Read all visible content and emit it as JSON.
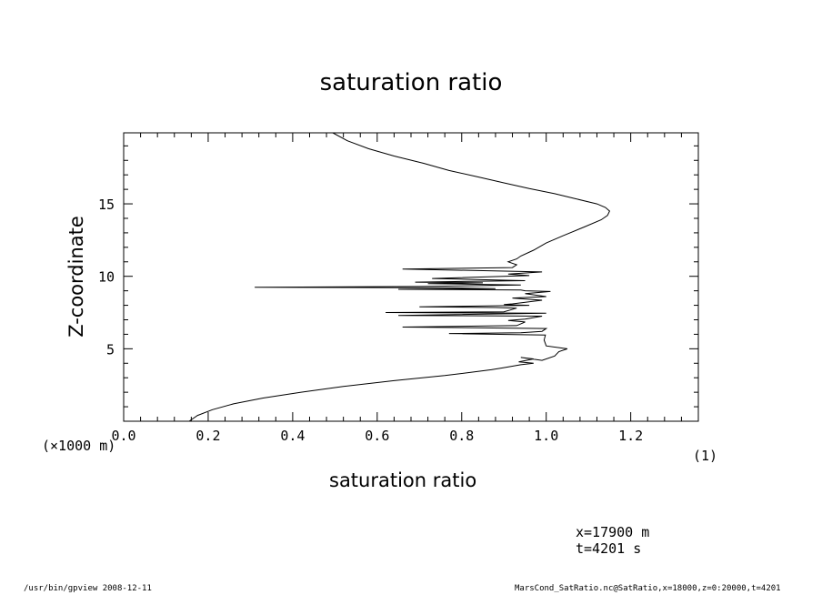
{
  "chart_data": {
    "type": "line",
    "title": "saturation ratio",
    "xlabel": "saturation ratio",
    "ylabel": "Z-coordinate",
    "x_unit": "(1)",
    "y_unit": "(×1000 m)",
    "xlim": [
      0.0,
      1.36
    ],
    "ylim": [
      0.0,
      19.9
    ],
    "x_ticks": [
      0.0,
      0.2,
      0.4,
      0.6,
      0.8,
      1.0,
      1.2
    ],
    "x_tick_labels": [
      "0.0",
      "0.2",
      "0.4",
      "0.6",
      "0.8",
      "1.0",
      "1.2"
    ],
    "y_ticks": [
      5,
      10,
      15
    ],
    "y_tick_labels": [
      "5",
      "10",
      "15"
    ],
    "grid": false,
    "series": [
      {
        "x": [
          0.155,
          0.175,
          0.21,
          0.26,
          0.33,
          0.42,
          0.52,
          0.64,
          0.76,
          0.83,
          0.87,
          0.9,
          0.92,
          0.94,
          0.97,
          0.935,
          0.97,
          0.94,
          0.99,
          1.02,
          1.03,
          1.05,
          1.0,
          0.995,
          0.998,
          0.77,
          0.94,
          0.99,
          1.0,
          0.66,
          0.93,
          0.95,
          0.91,
          0.95,
          0.99,
          0.65,
          1.0,
          0.62,
          0.9,
          0.93,
          0.88,
          0.7,
          0.96,
          0.9,
          0.92,
          0.99,
          0.92,
          1.0,
          0.95,
          1.01,
          0.95,
          0.94,
          0.65,
          0.88,
          0.76,
          0.31,
          0.7,
          0.94,
          0.72,
          0.85,
          0.69,
          0.95,
          0.88,
          0.73,
          0.96,
          0.91,
          0.99,
          0.66,
          0.92,
          0.93,
          0.91,
          0.92,
          0.93,
          0.94,
          0.97,
          1.0,
          1.04,
          1.09,
          1.13,
          1.145,
          1.15,
          1.14,
          1.12,
          1.07,
          1.02,
          0.96,
          0.9,
          0.84,
          0.77,
          0.71,
          0.64,
          0.58,
          0.53,
          0.495
        ],
        "y": [
          0.0,
          0.4,
          0.8,
          1.2,
          1.6,
          2.0,
          2.4,
          2.8,
          3.15,
          3.4,
          3.55,
          3.7,
          3.8,
          3.9,
          4.0,
          4.1,
          4.3,
          4.4,
          4.2,
          4.5,
          4.8,
          5.0,
          5.2,
          5.6,
          5.95,
          6.05,
          6.1,
          6.2,
          6.4,
          6.5,
          6.6,
          6.85,
          6.95,
          7.05,
          7.25,
          7.3,
          7.45,
          7.5,
          7.55,
          7.8,
          7.85,
          7.9,
          8.0,
          8.05,
          8.1,
          8.35,
          8.5,
          8.6,
          8.8,
          8.95,
          9.0,
          9.05,
          9.1,
          9.15,
          9.2,
          9.25,
          9.3,
          9.4,
          9.5,
          9.55,
          9.6,
          9.7,
          9.75,
          9.85,
          10.05,
          10.15,
          10.3,
          10.5,
          10.6,
          10.8,
          11.0,
          11.1,
          11.2,
          11.4,
          11.8,
          12.3,
          12.8,
          13.4,
          13.9,
          14.2,
          14.5,
          14.75,
          15.0,
          15.35,
          15.7,
          16.05,
          16.45,
          16.85,
          17.3,
          17.8,
          18.3,
          18.8,
          19.35,
          19.9
        ]
      }
    ]
  },
  "info": {
    "x_pos": "x=17900  m",
    "t_time": "t=4201  s"
  },
  "footer": {
    "left": "/usr/bin/gpview  2008-12-11",
    "right": "MarsCond_SatRatio.nc@SatRatio,x=18000,z=0:20000,t=4201"
  }
}
